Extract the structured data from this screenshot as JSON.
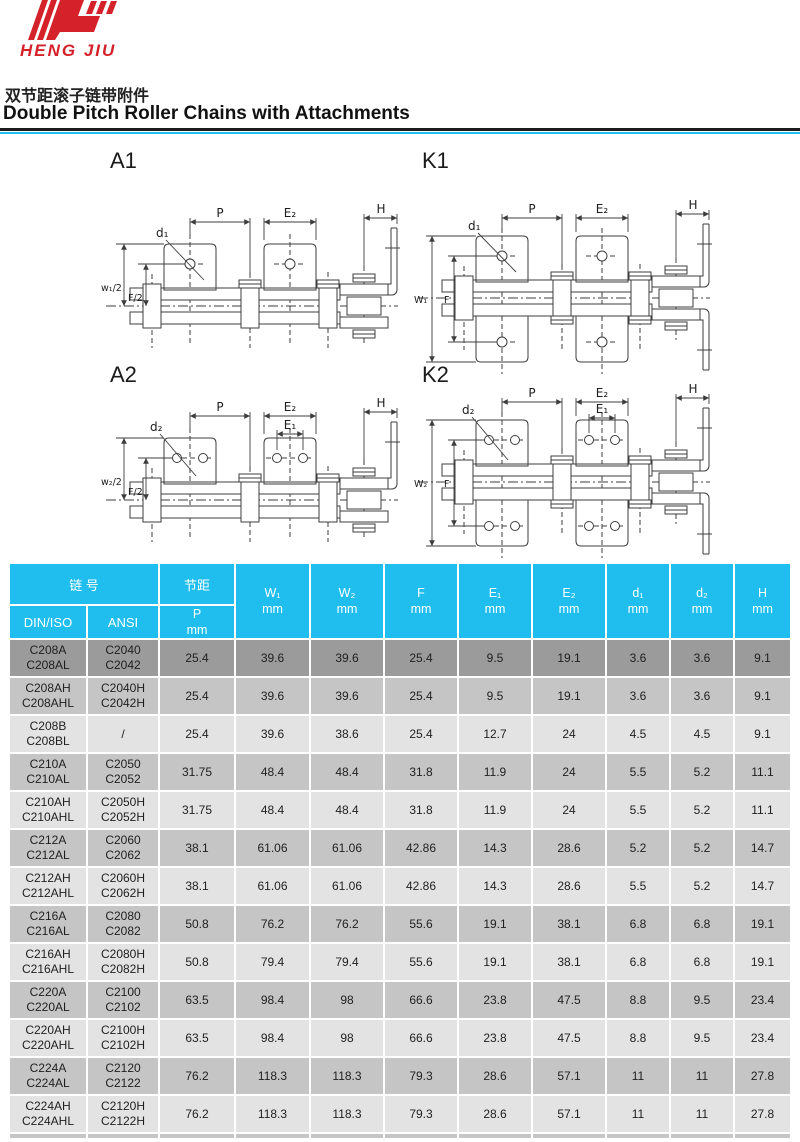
{
  "brand": {
    "name": "HENG JIU"
  },
  "title": {
    "zh": "双节距滚子链带附件",
    "en": "Double Pitch Roller Chains with Attachments"
  },
  "colors": {
    "accent_cyan": "#1FBEEF",
    "accent_red": "#D4212A",
    "row_dark": "#9B9B9B",
    "row_mid": "#C5C5C5",
    "row_light": "#E3E3E3"
  },
  "diagrams": [
    {
      "label": "A1",
      "dims": {
        "p": "P",
        "e2": "E₂",
        "h": "H",
        "d": "d₁",
        "w": "w₁/2",
        "f": "F/2"
      }
    },
    {
      "label": "K1",
      "dims": {
        "p": "P",
        "e2": "E₂",
        "h": "H",
        "d": "d₁",
        "w": "W₁",
        "f": "F"
      }
    },
    {
      "label": "A2",
      "dims": {
        "p": "P",
        "e2": "E₂",
        "e1": "E₁",
        "h": "H",
        "d": "d₂",
        "w": "w₂/2",
        "f": "F/2"
      }
    },
    {
      "label": "K2",
      "dims": {
        "p": "P",
        "e2": "E₂",
        "e1": "E₁",
        "h": "H",
        "d": "d₂",
        "w": "W₂",
        "f": "F"
      }
    }
  ],
  "table": {
    "header": {
      "chain_no": "链 号",
      "din_iso": "DIN/ISO",
      "ansi": "ANSI",
      "pitch": "节距",
      "p": "P",
      "mm": "mm",
      "cols": [
        "W₁",
        "W₂",
        "F",
        "E₁",
        "E₂",
        "d₁",
        "d₂",
        "H"
      ]
    },
    "rows": [
      {
        "shade": "dark",
        "din": [
          "C208A",
          "C208AL"
        ],
        "ansi": [
          "C2040",
          "C2042"
        ],
        "vals": [
          "25.4",
          "39.6",
          "39.6",
          "25.4",
          "9.5",
          "19.1",
          "3.6",
          "3.6",
          "9.1"
        ]
      },
      {
        "shade": "mid",
        "din": [
          "C208AH",
          "C208AHL"
        ],
        "ansi": [
          "C2040H",
          "C2042H"
        ],
        "vals": [
          "25.4",
          "39.6",
          "39.6",
          "25.4",
          "9.5",
          "19.1",
          "3.6",
          "3.6",
          "9.1"
        ]
      },
      {
        "shade": "light",
        "din": [
          "C208B",
          "C208BL"
        ],
        "ansi": [
          "/"
        ],
        "vals": [
          "25.4",
          "39.6",
          "38.6",
          "25.4",
          "12.7",
          "24",
          "4.5",
          "4.5",
          "9.1"
        ]
      },
      {
        "shade": "mid",
        "din": [
          "C210A",
          "C210AL"
        ],
        "ansi": [
          "C2050",
          "C2052"
        ],
        "vals": [
          "31.75",
          "48.4",
          "48.4",
          "31.8",
          "11.9",
          "24",
          "5.5",
          "5.2",
          "11.1"
        ]
      },
      {
        "shade": "light",
        "din": [
          "C210AH",
          "C210AHL"
        ],
        "ansi": [
          "C2050H",
          "C2052H"
        ],
        "vals": [
          "31.75",
          "48.4",
          "48.4",
          "31.8",
          "11.9",
          "24",
          "5.5",
          "5.2",
          "11.1"
        ]
      },
      {
        "shade": "mid",
        "din": [
          "C212A",
          "C212AL"
        ],
        "ansi": [
          "C2060",
          "C2062"
        ],
        "vals": [
          "38.1",
          "61.06",
          "61.06",
          "42.86",
          "14.3",
          "28.6",
          "5.2",
          "5.2",
          "14.7"
        ]
      },
      {
        "shade": "light",
        "din": [
          "C212AH",
          "C212AHL"
        ],
        "ansi": [
          "C2060H",
          "C2062H"
        ],
        "vals": [
          "38.1",
          "61.06",
          "61.06",
          "42.86",
          "14.3",
          "28.6",
          "5.5",
          "5.2",
          "14.7"
        ]
      },
      {
        "shade": "mid",
        "din": [
          "C216A",
          "C216AL"
        ],
        "ansi": [
          "C2080",
          "C2082"
        ],
        "vals": [
          "50.8",
          "76.2",
          "76.2",
          "55.6",
          "19.1",
          "38.1",
          "6.8",
          "6.8",
          "19.1"
        ]
      },
      {
        "shade": "light",
        "din": [
          "C216AH",
          "C216AHL"
        ],
        "ansi": [
          "C2080H",
          "C2082H"
        ],
        "vals": [
          "50.8",
          "79.4",
          "79.4",
          "55.6",
          "19.1",
          "38.1",
          "6.8",
          "6.8",
          "19.1"
        ]
      },
      {
        "shade": "mid",
        "din": [
          "C220A",
          "C220AL"
        ],
        "ansi": [
          "C2100",
          "C2102"
        ],
        "vals": [
          "63.5",
          "98.4",
          "98",
          "66.6",
          "23.8",
          "47.5",
          "8.8",
          "9.5",
          "23.4"
        ]
      },
      {
        "shade": "light",
        "din": [
          "C220AH",
          "C220AHL"
        ],
        "ansi": [
          "C2100H",
          "C2102H"
        ],
        "vals": [
          "63.5",
          "98.4",
          "98",
          "66.6",
          "23.8",
          "47.5",
          "8.8",
          "9.5",
          "23.4"
        ]
      },
      {
        "shade": "mid",
        "din": [
          "C224A",
          "C224AL"
        ],
        "ansi": [
          "C2120",
          "C2122"
        ],
        "vals": [
          "76.2",
          "118.3",
          "118.3",
          "79.3",
          "28.6",
          "57.1",
          "11",
          "11",
          "27.8"
        ]
      },
      {
        "shade": "light",
        "din": [
          "C224AH",
          "C224AHL"
        ],
        "ansi": [
          "C2120H",
          "C2122H"
        ],
        "vals": [
          "76.2",
          "118.3",
          "118.3",
          "79.3",
          "28.6",
          "57.1",
          "11",
          "11",
          "27.8"
        ]
      }
    ],
    "cut_row": {
      "shade": "mid"
    }
  }
}
